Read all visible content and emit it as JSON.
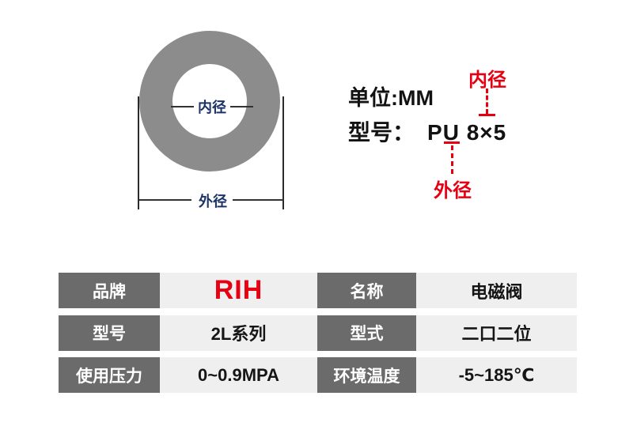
{
  "diagram": {
    "inner_diameter_label": "内径",
    "outer_diameter_label": "外径"
  },
  "specs": {
    "unit_line": "单位:MM",
    "model_label": "型号：",
    "model_value": "PU 8×5",
    "inner_pointer_label": "内径",
    "outer_pointer_label": "外径"
  },
  "table": {
    "rows": [
      {
        "left_header": "品牌",
        "left_value": "RIH",
        "right_header": "名称",
        "right_value": "电磁阀"
      },
      {
        "left_header": "型号",
        "left_value": "2L系列",
        "right_header": "型式",
        "right_value": "二口二位"
      },
      {
        "left_header": "使用压力",
        "left_value": "0~0.9MPA",
        "right_header": "环境温度",
        "right_value": "-5~185℃"
      }
    ]
  },
  "colors": {
    "accent_red": "#e60012",
    "ring_gray": "#8c8c8c",
    "table_header_gray": "#6b6b6b",
    "table_cell_gray": "#efefef",
    "diagram_label_navy": "#1c3366"
  }
}
